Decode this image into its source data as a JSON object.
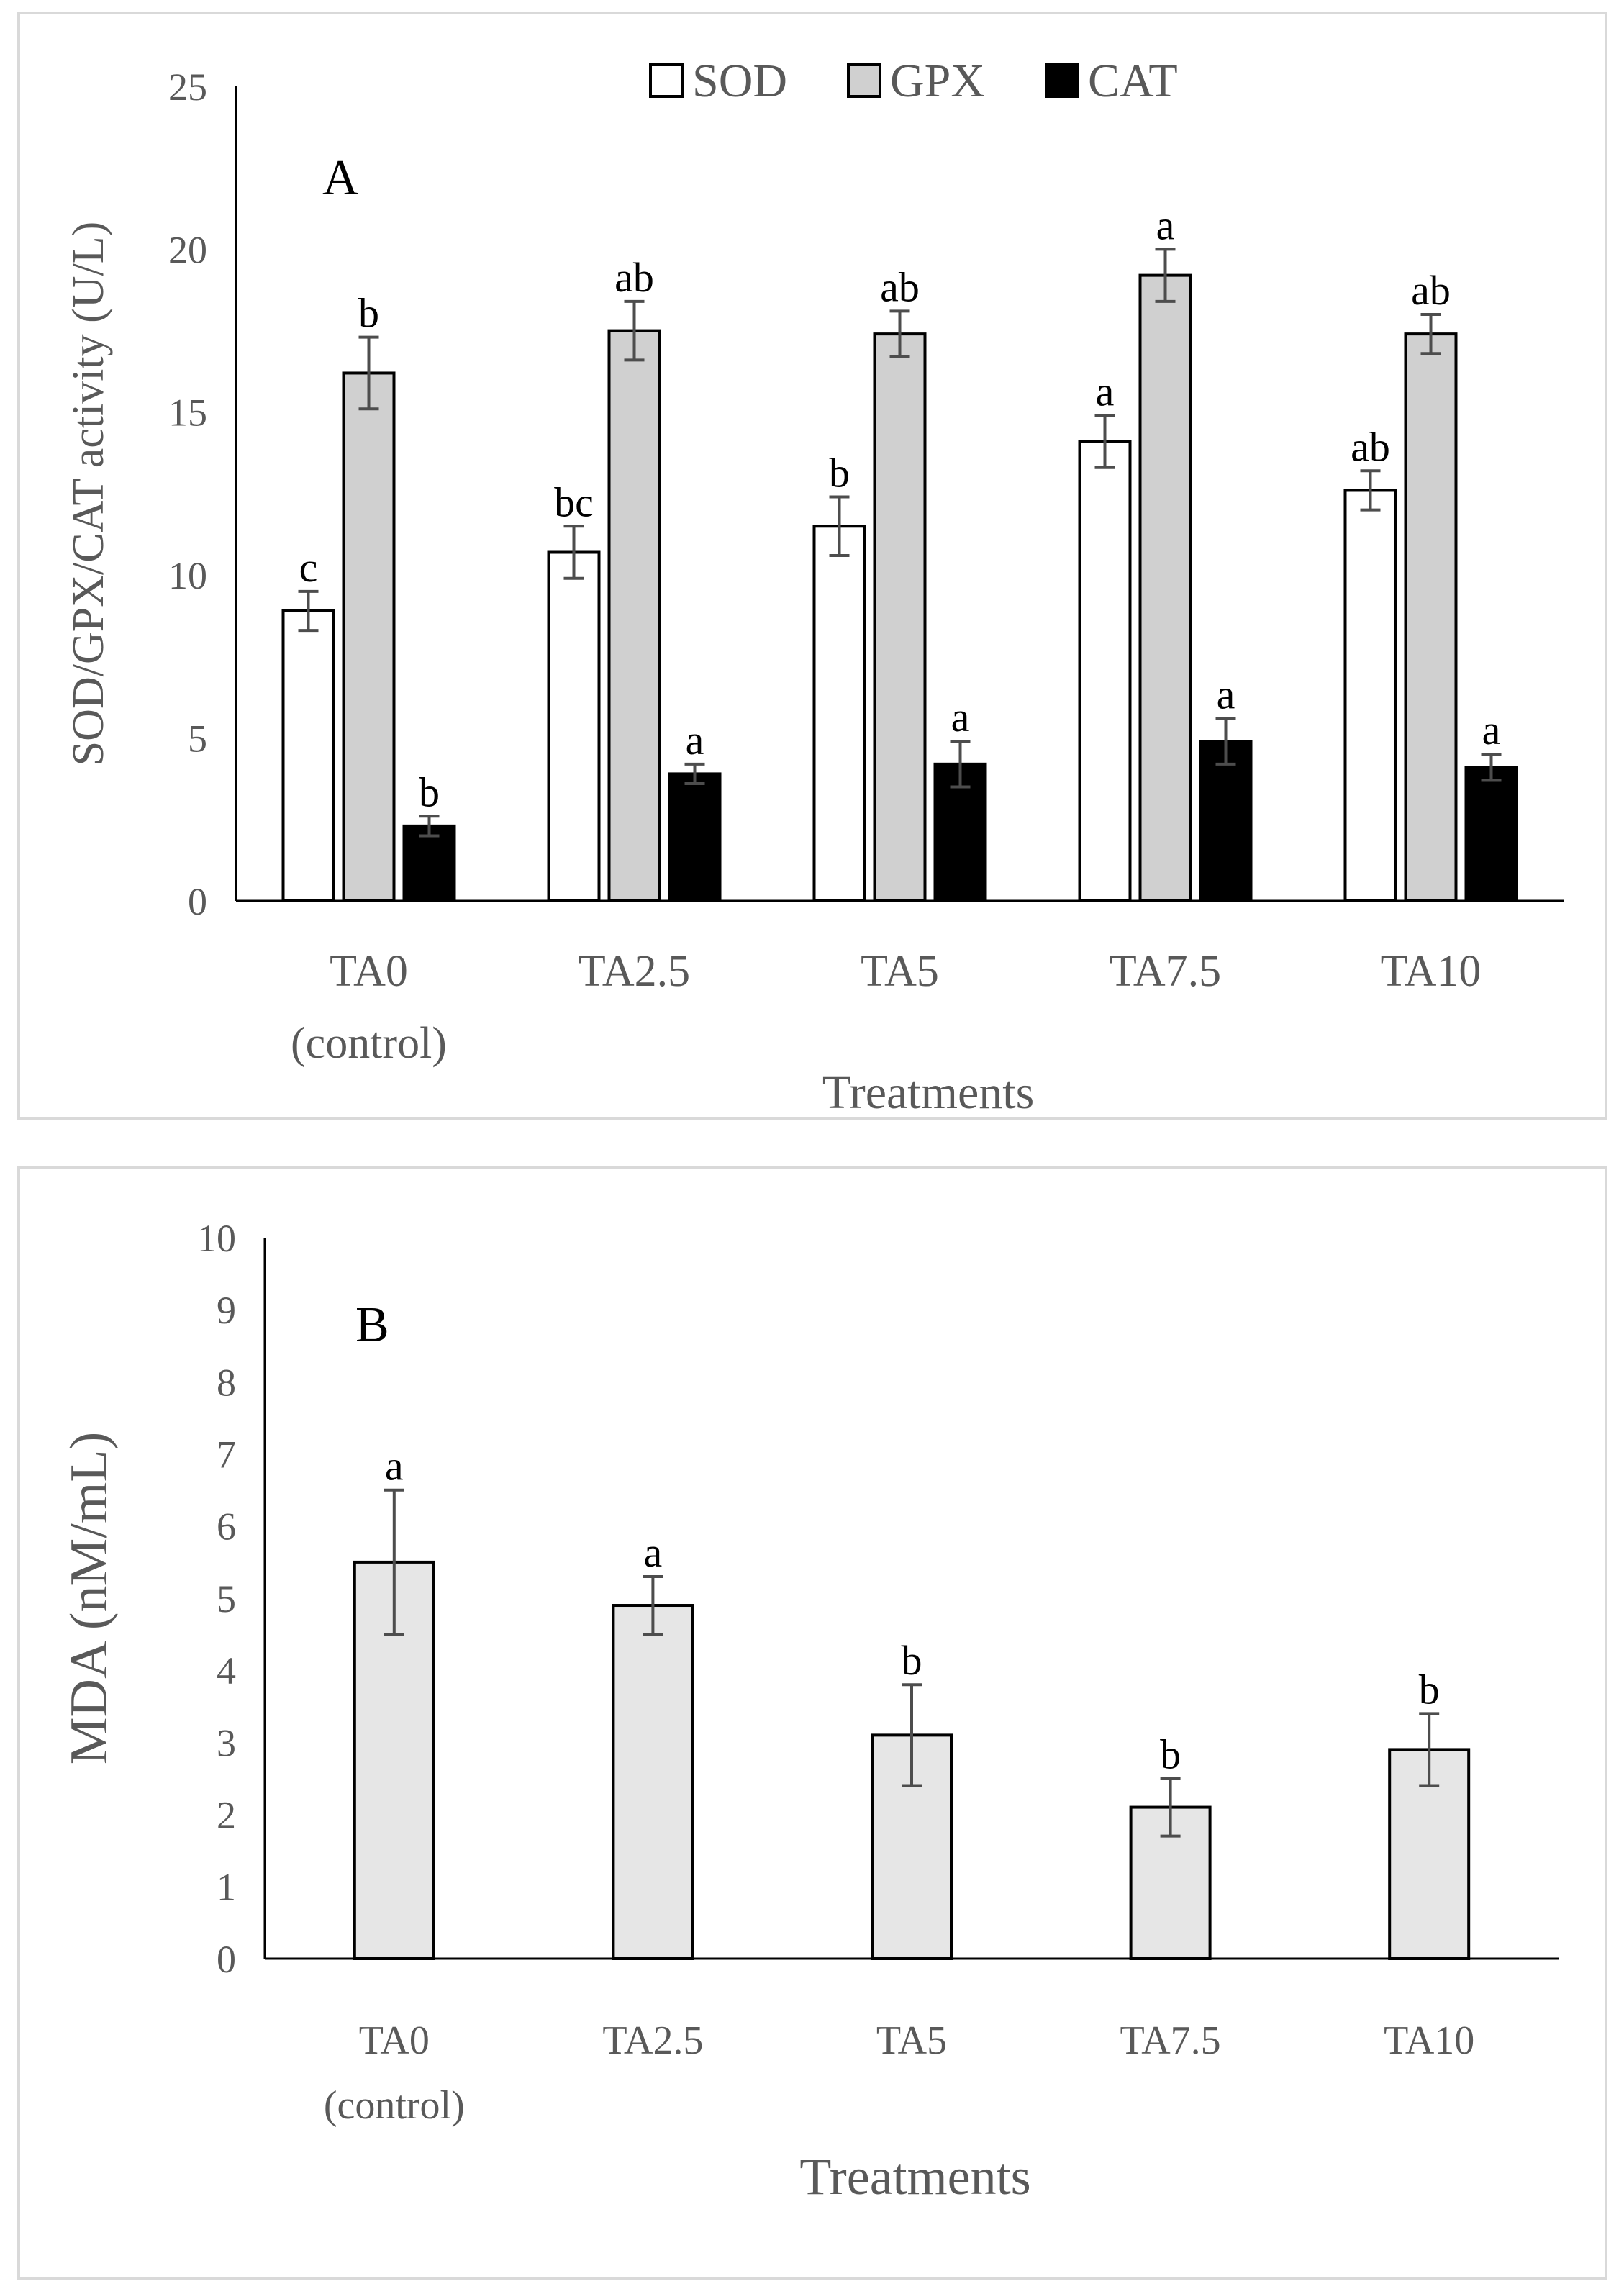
{
  "chart_data": [
    {
      "type": "bar",
      "panel_label": "A",
      "title": "",
      "xlabel": "Treatments",
      "ylabel": "SOD/GPX/CAT activity (U/L)",
      "ylim": [
        0,
        25
      ],
      "yticks": [
        "0",
        "5",
        "10",
        "15",
        "20",
        "25"
      ],
      "grid": false,
      "legend_position": "top",
      "categories": [
        [
          "TA0",
          "(control)"
        ],
        [
          "TA2.5"
        ],
        [
          "TA5"
        ],
        [
          "TA7.5"
        ],
        [
          "TA10"
        ]
      ],
      "series": [
        {
          "name": "SOD",
          "color": "#ffffff",
          "values": [
            8.9,
            10.7,
            11.5,
            14.1,
            12.6
          ],
          "errors": [
            0.6,
            0.8,
            0.9,
            0.8,
            0.6
          ],
          "letters": [
            "c",
            "bc",
            "b",
            "a",
            "ab"
          ]
        },
        {
          "name": "GPX",
          "color": "#d0d0d0",
          "values": [
            16.2,
            17.5,
            17.4,
            19.2,
            17.4
          ],
          "errors": [
            1.1,
            0.9,
            0.7,
            0.8,
            0.6
          ],
          "letters": [
            "b",
            "ab",
            "ab",
            "a",
            "ab"
          ]
        },
        {
          "name": "CAT",
          "color": "#000000",
          "values": [
            2.3,
            3.9,
            4.2,
            4.9,
            4.1
          ],
          "errors": [
            0.3,
            0.3,
            0.7,
            0.7,
            0.4
          ],
          "letters": [
            "b",
            "a",
            "a",
            "a",
            "a"
          ]
        }
      ]
    },
    {
      "type": "bar",
      "panel_label": "B",
      "title": "",
      "xlabel": "Treatments",
      "ylabel": "MDA (nM/mL)",
      "ylim": [
        0,
        10
      ],
      "yticks": [
        "0",
        "1",
        "2",
        "3",
        "4",
        "5",
        "6",
        "7",
        "8",
        "9",
        "10"
      ],
      "grid": false,
      "legend_position": "none",
      "categories": [
        [
          "TA0",
          "(control)"
        ],
        [
          "TA2.5"
        ],
        [
          "TA5"
        ],
        [
          "TA7.5"
        ],
        [
          "TA10"
        ]
      ],
      "series": [
        {
          "name": "",
          "color": "#e6e6e6",
          "values": [
            5.5,
            4.9,
            3.1,
            2.1,
            2.9
          ],
          "errors": [
            1.0,
            0.4,
            0.7,
            0.4,
            0.5
          ],
          "letters": [
            "a",
            "a",
            "b",
            "b",
            "b"
          ]
        }
      ]
    }
  ]
}
